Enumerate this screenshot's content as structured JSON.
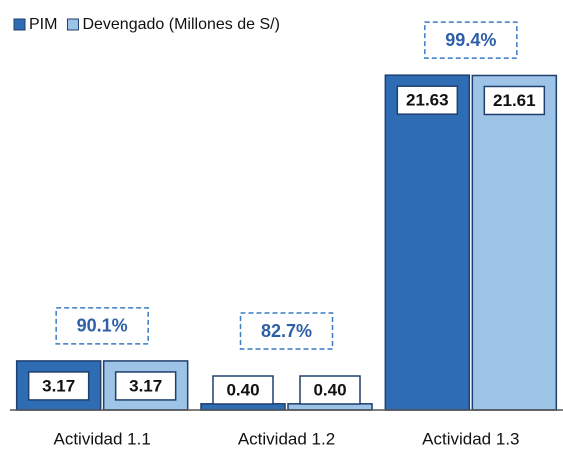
{
  "chart_data": {
    "type": "bar",
    "categories": [
      "Actividad 1.1",
      "Actividad 1.2",
      "Actividad 1.3"
    ],
    "series": [
      {
        "name": "PIM",
        "color": "#2e6db4",
        "values": [
          3.17,
          0.4,
          21.63
        ],
        "value_labels": [
          "3.17",
          "0.40",
          "21.63"
        ]
      },
      {
        "name": "Devengado (Millones de S/)",
        "color": "#9dc3e6",
        "values": [
          3.17,
          0.4,
          21.61
        ],
        "value_labels": [
          "3.17",
          "0.40",
          "21.61"
        ]
      }
    ],
    "annotations": [
      "90.1%",
      "82.7%",
      "99.4%"
    ],
    "ylim": [
      0,
      25
    ],
    "legend": "top-left"
  }
}
